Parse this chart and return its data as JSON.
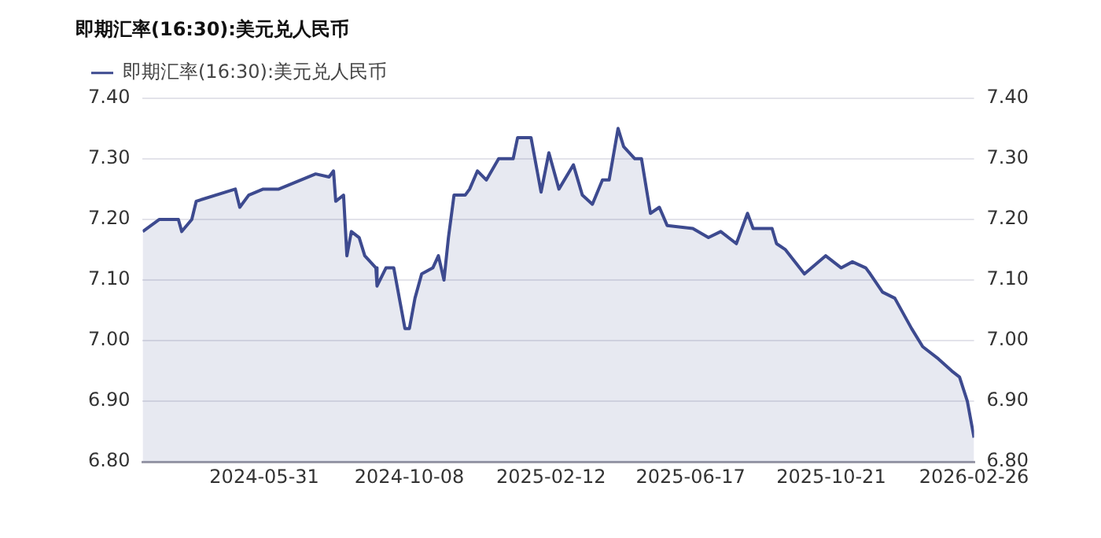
{
  "chart_data": {
    "type": "area",
    "title": "即期汇率(16:30):美元兑人民币",
    "x": [
      "2024-02-12",
      "2024-02-27",
      "2024-03-15",
      "2024-03-18",
      "2024-03-27",
      "2024-03-31",
      "2024-05-05",
      "2024-05-09",
      "2024-05-17",
      "2024-05-30",
      "2024-06-13",
      "2024-07-16",
      "2024-07-28",
      "2024-08-01",
      "2024-08-03",
      "2024-08-10",
      "2024-08-13",
      "2024-08-17",
      "2024-08-24",
      "2024-08-29",
      "2024-09-08",
      "2024-09-09",
      "2024-09-17",
      "2024-09-24",
      "2024-09-30",
      "2024-10-04",
      "2024-10-08",
      "2024-10-13",
      "2024-10-19",
      "2024-10-29",
      "2024-11-03",
      "2024-11-08",
      "2024-11-12",
      "2024-11-17",
      "2024-11-27",
      "2024-12-01",
      "2024-12-08",
      "2024-12-16",
      "2024-12-27",
      "2025-01-09",
      "2025-01-13",
      "2025-01-25",
      "2025-02-03",
      "2025-02-10",
      "2025-02-19",
      "2025-03-04",
      "2025-03-12",
      "2025-03-21",
      "2025-03-30",
      "2025-04-05",
      "2025-04-13",
      "2025-04-18",
      "2025-04-28",
      "2025-05-04",
      "2025-05-12",
      "2025-05-20",
      "2025-05-27",
      "2025-06-19",
      "2025-07-03",
      "2025-07-14",
      "2025-07-28",
      "2025-08-07",
      "2025-08-12",
      "2025-08-29",
      "2025-09-02",
      "2025-09-10",
      "2025-09-27",
      "2025-10-16",
      "2025-10-30",
      "2025-11-09",
      "2025-11-21",
      "2025-11-25",
      "2025-12-06",
      "2025-12-17",
      "2026-01-01",
      "2026-01-11",
      "2026-01-25",
      "2026-02-06",
      "2026-02-13",
      "2026-02-20",
      "2026-02-26"
    ],
    "series": [
      {
        "name": "即期汇率(16:30):美元兑人民币",
        "color": "#3d4a8f",
        "values": [
          7.18,
          7.2,
          7.2,
          7.18,
          7.2,
          7.23,
          7.25,
          7.22,
          7.24,
          7.25,
          7.25,
          7.275,
          7.27,
          7.28,
          7.23,
          7.24,
          7.14,
          7.18,
          7.17,
          7.14,
          7.12,
          7.09,
          7.12,
          7.12,
          7.06,
          7.02,
          7.02,
          7.07,
          7.11,
          7.12,
          7.14,
          7.1,
          7.17,
          7.24,
          7.24,
          7.25,
          7.28,
          7.265,
          7.3,
          7.3,
          7.335,
          7.335,
          7.245,
          7.31,
          7.25,
          7.29,
          7.24,
          7.225,
          7.265,
          7.265,
          7.35,
          7.32,
          7.3,
          7.3,
          7.21,
          7.22,
          7.19,
          7.185,
          7.17,
          7.18,
          7.16,
          7.21,
          7.185,
          7.185,
          7.16,
          7.15,
          7.11,
          7.14,
          7.12,
          7.13,
          7.12,
          7.11,
          7.08,
          7.07,
          7.02,
          6.99,
          6.97,
          6.95,
          6.94,
          6.9,
          6.84
        ]
      }
    ],
    "xlim": [
      "2024-02-12",
      "2026-02-26"
    ],
    "xticks": [
      "2024-05-31",
      "2024-10-08",
      "2025-02-12",
      "2025-06-17",
      "2025-10-21",
      "2026-02-26"
    ],
    "ylim": [
      6.8,
      7.4
    ],
    "yticks": [
      {
        "value": 6.8,
        "label": "6.80"
      },
      {
        "value": 6.9,
        "label": "6.90"
      },
      {
        "value": 7.0,
        "label": "7.00"
      },
      {
        "value": 7.1,
        "label": "7.10"
      },
      {
        "value": 7.2,
        "label": "7.20"
      },
      {
        "value": 7.3,
        "label": "7.30"
      },
      {
        "value": 7.4,
        "label": "7.40"
      }
    ],
    "y2lim": [
      6.8,
      7.4
    ],
    "y2ticks": [
      {
        "value": 6.8,
        "label": "6.80"
      },
      {
        "value": 6.9,
        "label": "6.90"
      },
      {
        "value": 7.0,
        "label": "7.00"
      },
      {
        "value": 7.1,
        "label": "7.10"
      },
      {
        "value": 7.2,
        "label": "7.20"
      },
      {
        "value": 7.3,
        "label": "7.30"
      },
      {
        "value": 7.4,
        "label": "7.40"
      }
    ],
    "grid": "y",
    "legend": "top",
    "marker": "none",
    "line_style": "solid"
  }
}
